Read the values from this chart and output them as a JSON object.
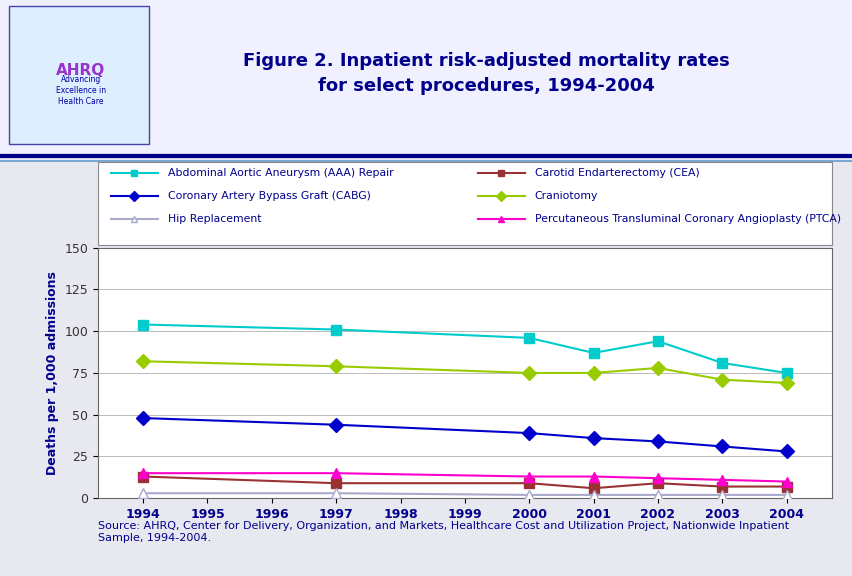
{
  "title": "Figure 2. Inpatient risk-adjusted mortality rates\nfor select procedures, 1994-2004",
  "ylabel": "Deaths per 1,000 admissions",
  "source_text": "Source: AHRQ, Center for Delivery, Organization, and Markets, Healthcare Cost and Utilization Project, Nationwide Inpatient\nSample, 1994-2004.",
  "x_values": [
    1994,
    1997,
    2000,
    2001,
    2002,
    2003,
    2004
  ],
  "x_ticks": [
    1994,
    1995,
    1996,
    1997,
    1998,
    1999,
    2000,
    2001,
    2002,
    2003,
    2004
  ],
  "ylim": [
    0,
    150
  ],
  "yticks": [
    0,
    25,
    50,
    75,
    100,
    125,
    150
  ],
  "series": {
    "AAA": {
      "label": "Abdominal Aortic Aneurysm (AAA) Repair",
      "values": [
        104,
        101,
        96,
        87,
        94,
        81,
        75
      ],
      "color": "#00CCCC",
      "marker": "s",
      "linewidth": 1.5
    },
    "CEA": {
      "label": "Carotid Endarterectomy (CEA)",
      "values": [
        13,
        9,
        9,
        6,
        9,
        7,
        7
      ],
      "color": "#993333",
      "marker": "s",
      "linewidth": 1.5
    },
    "CABG": {
      "label": "Coronary Artery Bypass Graft (CABG)",
      "values": [
        48,
        44,
        39,
        36,
        34,
        31,
        28
      ],
      "color": "#0000CC",
      "marker": "D",
      "linewidth": 1.5
    },
    "Craniotomy": {
      "label": "Craniotomy",
      "values": [
        82,
        79,
        75,
        75,
        78,
        71,
        69
      ],
      "color": "#99CC00",
      "marker": "D",
      "linewidth": 1.5
    },
    "HipReplacement": {
      "label": "Hip Replacement",
      "values": [
        3,
        3,
        2,
        2,
        2,
        2,
        2
      ],
      "color": "#AAAACC",
      "marker": "^",
      "marker_facecolor": "white",
      "linewidth": 1.5
    },
    "PTCA": {
      "label": "Percutaneous Transluminal Coronary Angioplasty (PTCA)",
      "values": [
        15,
        15,
        13,
        13,
        12,
        11,
        10
      ],
      "color": "#FF00CC",
      "marker": "^",
      "linewidth": 1.5
    }
  },
  "background_color": "#E8E8F0",
  "header_color": "#F0F0FF",
  "plot_bg_color": "#FFFFFF",
  "title_color": "#00008B",
  "legend_order": [
    "AAA",
    "CEA",
    "CABG",
    "Craniotomy",
    "HipReplacement",
    "PTCA"
  ],
  "separator_color_dark": "#00008B",
  "separator_color_light": "#6699CC"
}
